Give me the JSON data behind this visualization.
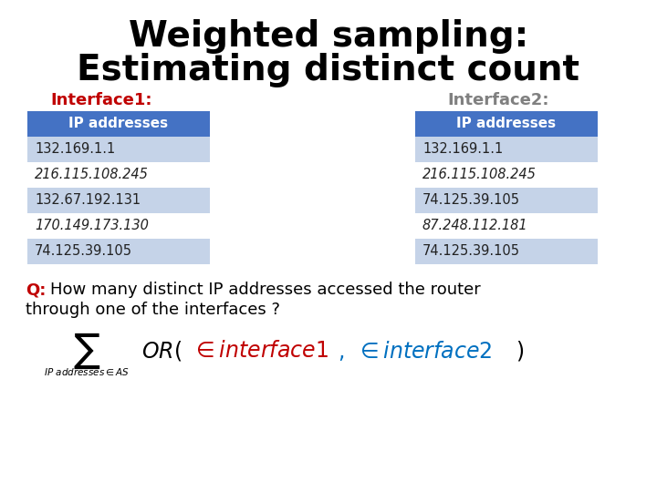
{
  "title_line1": "Weighted sampling:",
  "title_line2": "Estimating distinct count",
  "interface1_label": "Interface1:",
  "interface2_label": "Interface2:",
  "table_header": "IP addresses",
  "table1_rows": [
    "132.169.1.1",
    "216.115.108.245",
    "132.67.192.131",
    "170.149.173.130",
    "74.125.39.105"
  ],
  "table2_rows": [
    "132.169.1.1",
    "216.115.108.245",
    "74.125.39.105",
    "87.248.112.181",
    "74.125.39.105"
  ],
  "header_bg": "#4472C4",
  "header_fg": "#FFFFFF",
  "row_odd_bg": "#C5D3E8",
  "row_even_bg": "#FFFFFF",
  "interface1_color": "#C00000",
  "interface2_color": "#808080",
  "title_color": "#000000",
  "question_color": "#000000",
  "q_color": "#C00000",
  "formula_or_color": "#000000",
  "formula_int1_color": "#C00000",
  "formula_int2_color": "#0070C0",
  "bg_color": "#FFFFFF"
}
